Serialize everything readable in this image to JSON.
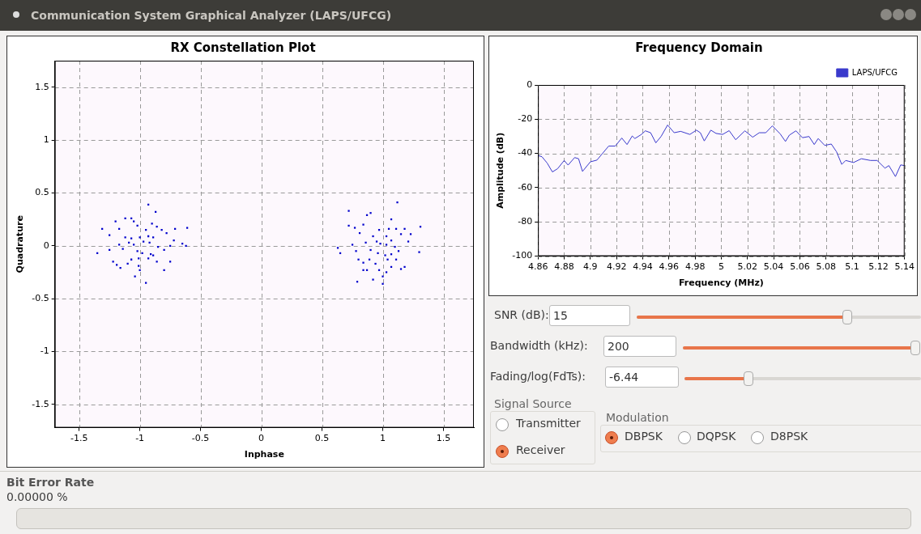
{
  "chart_data": [
    {
      "type": "scatter",
      "title": "RX Constellation Plot",
      "xlabel": "Inphase",
      "ylabel": "Quadrature",
      "xlim": [
        -1.7,
        1.75
      ],
      "ylim": [
        -1.72,
        1.75
      ],
      "xticks": [
        -1.5,
        -1,
        -0.5,
        0,
        0.5,
        1,
        1.5
      ],
      "yticks": [
        -1.5,
        -1,
        -0.5,
        0,
        0.5,
        1,
        1.5
      ],
      "grid": true,
      "marker": "square",
      "legend": false,
      "series": [
        {
          "color": "#0000cc",
          "x": [
            -0.93,
            -0.87,
            -1.31,
            -0.61,
            -0.71,
            -1.35,
            -0.62,
            -0.65,
            -0.95,
            -1.04,
            -0.8,
            -0.75,
            -1.22,
            -1.19,
            -1.16,
            -1.25,
            -1.25,
            -1.2,
            -1.12,
            -1.07,
            -1.05,
            -1.02,
            -0.95,
            -0.9,
            -0.86,
            -0.82,
            -0.78,
            -0.72,
            -0.75,
            -0.8,
            -0.85,
            -0.89,
            -0.93,
            -0.98,
            -1.01,
            -1.05,
            -1.09,
            -1.14,
            -1.17,
            -1.12,
            -1.07,
            -1.0,
            -0.93,
            -0.89,
            -0.92,
            -0.97,
            -1.02,
            -1.07,
            -1.1,
            -1.01,
            -1.0,
            -0.86,
            -0.91,
            -1.17,
            1.12,
            0.72,
            0.87,
            0.9,
            0.72,
            1.31,
            1.07,
            0.63,
            0.65,
            0.78,
            1.3,
            0.8,
            0.79,
            0.84,
            0.92,
            1.0,
            1.0,
            1.18,
            1.15,
            1.18,
            1.23,
            1.21,
            1.15,
            1.11,
            1.05,
            0.97,
            0.92,
            0.95,
            0.98,
            1.03,
            1.07,
            1.1,
            1.13,
            1.07,
            1.02,
            0.96,
            0.9,
            0.86,
            0.81,
            0.84,
            0.77,
            0.89,
            0.94,
            1.04,
            1.11,
            1.07,
            0.97,
            1.03,
            0.87,
            0.84,
            0.75,
            1.03
          ],
          "values": [
            0.39,
            0.32,
            0.16,
            0.17,
            0.16,
            -0.07,
            0.0,
            0.02,
            -0.35,
            -0.29,
            -0.23,
            -0.15,
            -0.15,
            -0.18,
            -0.21,
            -0.04,
            0.1,
            0.23,
            0.26,
            0.26,
            0.23,
            0.19,
            0.15,
            0.21,
            0.18,
            0.15,
            0.12,
            0.05,
            0.0,
            -0.04,
            -0.01,
            -0.09,
            -0.12,
            -0.07,
            -0.12,
            0.01,
            0.03,
            -0.03,
            0.01,
            0.08,
            0.07,
            0.08,
            0.09,
            0.08,
            0.03,
            0.04,
            -0.05,
            -0.13,
            -0.17,
            -0.19,
            -0.23,
            -0.15,
            -0.08,
            0.16,
            0.41,
            0.33,
            0.29,
            0.31,
            0.19,
            0.18,
            0.25,
            -0.02,
            -0.07,
            -0.05,
            -0.06,
            -0.13,
            -0.34,
            -0.23,
            -0.32,
            -0.36,
            -0.29,
            -0.2,
            -0.22,
            0.16,
            0.11,
            0.04,
            0.11,
            0.16,
            0.16,
            0.15,
            0.09,
            0.04,
            0.02,
            0.01,
            0.05,
            -0.01,
            -0.05,
            -0.08,
            -0.09,
            -0.07,
            -0.04,
            0.03,
            0.12,
            0.2,
            0.17,
            -0.13,
            -0.17,
            -0.13,
            -0.13,
            -0.2,
            -0.23,
            -0.25,
            -0.23,
            -0.16,
            0.01,
            0.09
          ]
        }
      ]
    },
    {
      "type": "line",
      "title": "Frequency Domain",
      "xlabel": "Frequency (MHz)",
      "ylabel": "Amplitude (dB)",
      "xlim": [
        4.86,
        5.14
      ],
      "ylim": [
        -100,
        0
      ],
      "xticks": [
        4.86,
        4.88,
        4.9,
        4.92,
        4.94,
        4.96,
        4.98,
        5,
        5.02,
        5.04,
        5.06,
        5.08,
        5.1,
        5.12,
        5.14
      ],
      "yticks": [
        -100,
        -80,
        -60,
        -40,
        -20,
        0
      ],
      "grid": true,
      "marker": "none",
      "line_style": "solid",
      "legend": "top right",
      "x": [
        4.86,
        4.863,
        4.867,
        4.871,
        4.875,
        4.88,
        4.883,
        4.888,
        4.891,
        4.894,
        4.9,
        4.905,
        4.914,
        4.919,
        4.924,
        4.928,
        4.932,
        4.934,
        4.939,
        4.942,
        4.946,
        4.95,
        4.954,
        4.959,
        4.964,
        4.969,
        4.976,
        4.981,
        4.984,
        4.987,
        4.992,
        4.996,
        5.001,
        5.006,
        5.011,
        5.018,
        5.024,
        5.029,
        5.034,
        5.039,
        5.045,
        5.049,
        5.052,
        5.057,
        5.062,
        5.067,
        5.071,
        5.074,
        5.079,
        5.084,
        5.088,
        5.092,
        5.095,
        5.101,
        5.107,
        5.114,
        5.119,
        5.125,
        5.128,
        5.133,
        5.137,
        5.14
      ],
      "series": [
        {
          "name": "LAPS/UFCG",
          "color": "#3a3acc",
          "values": [
            -41.2,
            -41.9,
            -45.6,
            -50.8,
            -48.9,
            -44.1,
            -46.8,
            -42.4,
            -43.1,
            -50.5,
            -44.9,
            -43.9,
            -35.7,
            -35.7,
            -31.0,
            -34.8,
            -29.8,
            -31.3,
            -28.9,
            -26.8,
            -27.9,
            -33.8,
            -30.1,
            -23.4,
            -27.9,
            -27.1,
            -28.9,
            -26.4,
            -27.9,
            -32.7,
            -26.4,
            -28.3,
            -28.9,
            -26.7,
            -32.0,
            -26.8,
            -30.5,
            -27.9,
            -27.9,
            -23.9,
            -28.6,
            -33.0,
            -29.3,
            -26.8,
            -30.8,
            -30.1,
            -34.8,
            -31.3,
            -35.3,
            -34.5,
            -39.0,
            -46.4,
            -44.1,
            -45.3,
            -43.1,
            -44.1,
            -44.1,
            -48.6,
            -47.1,
            -53.5,
            -46.7,
            -47.1
          ]
        }
      ]
    },
    {
      "type": "other",
      "title": "Communication System Graphical Analyzer (LAPS/UFCG)",
      "annotations": [
        "SNR (dB):",
        "15",
        "Bandwidth (kHz):",
        "200",
        "Fading/log(FdTs):",
        "-6.44",
        "Signal Source",
        "Transmitter",
        "Receiver",
        "Modulation",
        "DBPSK",
        "DQPSK",
        "D8PSK",
        "Bit Error Rate",
        "0.00000 %"
      ]
    }
  ]
}
